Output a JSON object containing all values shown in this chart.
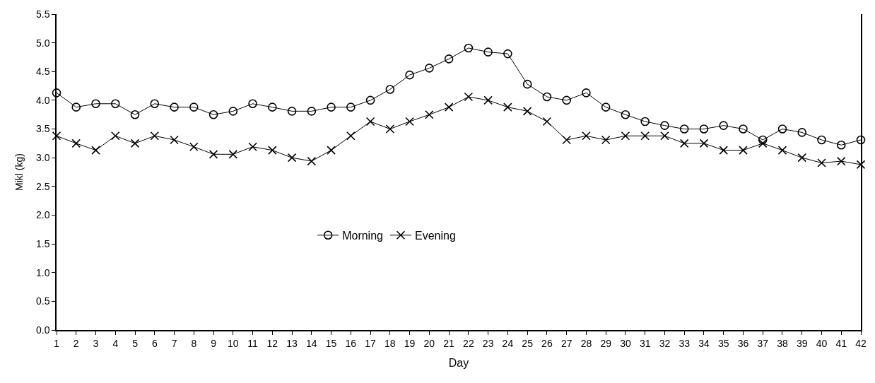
{
  "chart_data": {
    "type": "line",
    "xlabel": "Day",
    "ylabel": "Mikl (kg)",
    "x": [
      1,
      2,
      3,
      4,
      5,
      6,
      7,
      8,
      9,
      10,
      11,
      12,
      13,
      14,
      15,
      16,
      17,
      18,
      19,
      20,
      21,
      22,
      23,
      24,
      25,
      26,
      27,
      28,
      29,
      30,
      31,
      32,
      33,
      34,
      35,
      36,
      37,
      38,
      39,
      40,
      41,
      42
    ],
    "series": [
      {
        "name": "Morning",
        "color": "#000000",
        "marker": "circle",
        "values": [
          4.13,
          3.88,
          3.94,
          3.94,
          3.75,
          3.94,
          3.88,
          3.88,
          3.75,
          3.81,
          3.94,
          3.88,
          3.81,
          3.81,
          3.88,
          3.88,
          4.0,
          4.19,
          4.44,
          4.56,
          4.72,
          4.91,
          4.84,
          4.81,
          4.28,
          4.06,
          4.0,
          4.13,
          3.88,
          3.75,
          3.63,
          3.56,
          3.5,
          3.5,
          3.56,
          3.5,
          3.31,
          3.5,
          3.44,
          3.31,
          3.22,
          3.31
        ]
      },
      {
        "name": "Evening",
        "color": "#000000",
        "marker": "cross",
        "values": [
          3.38,
          3.25,
          3.13,
          3.38,
          3.25,
          3.38,
          3.31,
          3.19,
          3.06,
          3.06,
          3.19,
          3.13,
          3.0,
          2.94,
          3.13,
          3.38,
          3.63,
          3.5,
          3.63,
          3.75,
          3.88,
          4.06,
          4.0,
          3.88,
          3.81,
          3.63,
          3.31,
          3.38,
          3.31,
          3.38,
          3.38,
          3.38,
          3.25,
          3.25,
          3.13,
          3.13,
          3.25,
          3.13,
          3.0,
          2.91,
          2.94,
          2.88
        ]
      }
    ],
    "xlim": [
      1,
      42
    ],
    "xticks": [
      1,
      2,
      3,
      4,
      5,
      6,
      7,
      8,
      9,
      10,
      11,
      12,
      13,
      14,
      15,
      16,
      17,
      18,
      19,
      20,
      21,
      22,
      23,
      24,
      25,
      26,
      27,
      28,
      29,
      30,
      31,
      32,
      33,
      34,
      35,
      36,
      37,
      38,
      39,
      40,
      41,
      42
    ],
    "ylim": [
      0,
      5.5
    ],
    "yticks": [
      {
        "value": 0,
        "label": "0.0"
      },
      {
        "value": 0.5,
        "label": "0.5"
      },
      {
        "value": 1,
        "label": "1.0"
      },
      {
        "value": 1.5,
        "label": "1.5"
      },
      {
        "value": 2,
        "label": "2.0"
      },
      {
        "value": 2.5,
        "label": "2.5"
      },
      {
        "value": 3,
        "label": "3.0"
      },
      {
        "value": 3.5,
        "label": "3.5"
      },
      {
        "value": 4,
        "label": "4.0"
      },
      {
        "value": 4.5,
        "label": "4.5"
      },
      {
        "value": 5,
        "label": "5.0"
      },
      {
        "value": 5.5,
        "label": "5.5"
      }
    ],
    "legend": "center",
    "line_style": "solid"
  }
}
